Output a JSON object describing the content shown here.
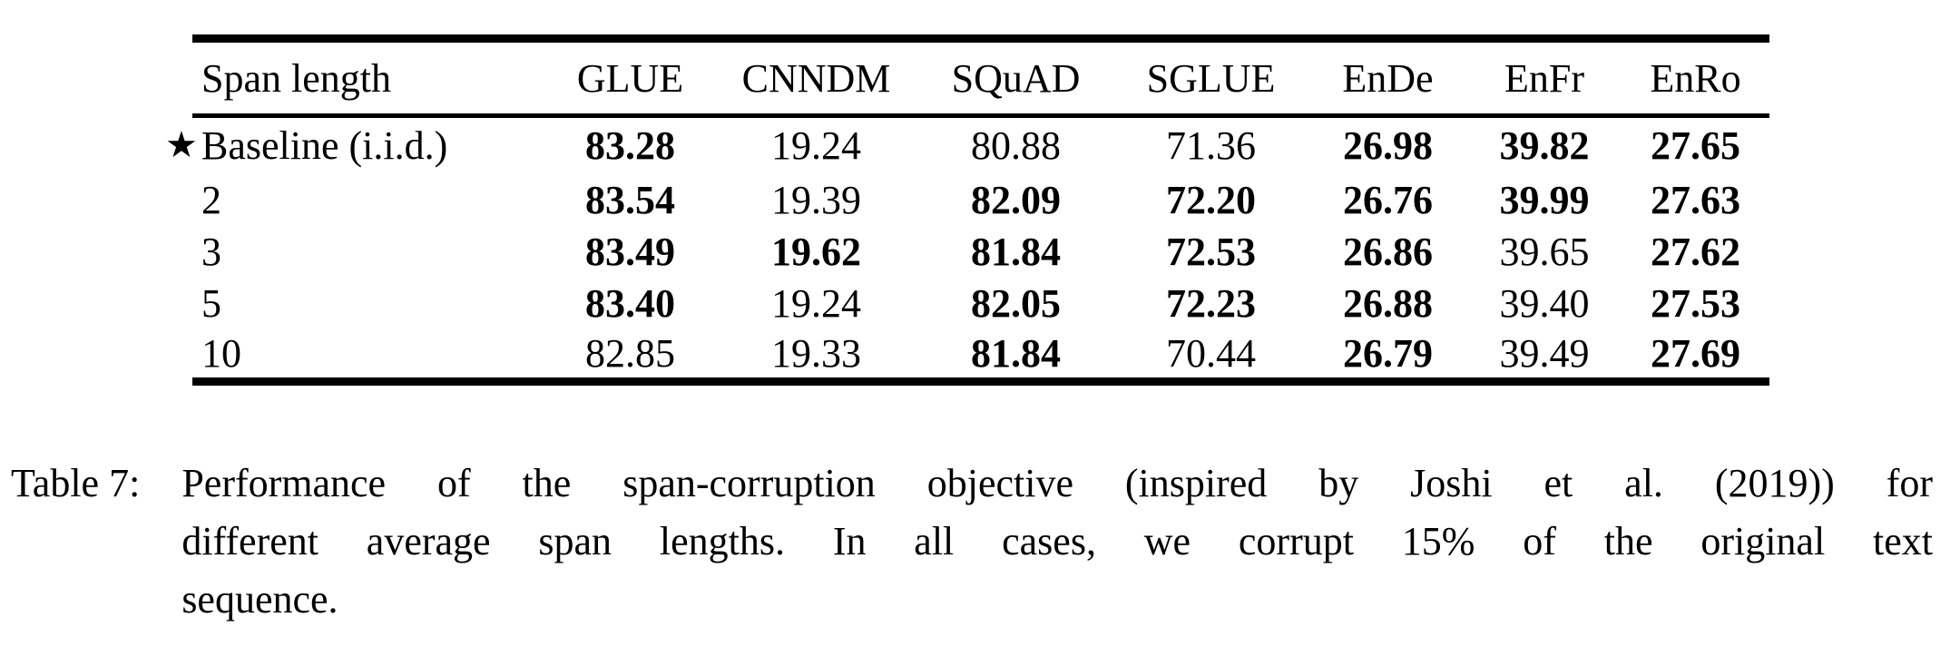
{
  "table": {
    "columns": [
      "Span length",
      "GLUE",
      "CNNDM",
      "SQuAD",
      "SGLUE",
      "EnDe",
      "EnFr",
      "EnRo"
    ],
    "rows": [
      {
        "star": "★",
        "label": "Baseline (i.i.d.)",
        "cells": [
          "83.28",
          "19.24",
          "80.88",
          "71.36",
          "26.98",
          "39.82",
          "27.65"
        ],
        "bold": [
          true,
          false,
          false,
          false,
          true,
          true,
          true
        ]
      },
      {
        "label": "2",
        "cells": [
          "83.54",
          "19.39",
          "82.09",
          "72.20",
          "26.76",
          "39.99",
          "27.63"
        ],
        "bold": [
          true,
          false,
          true,
          true,
          true,
          true,
          true
        ]
      },
      {
        "label": "3",
        "cells": [
          "83.49",
          "19.62",
          "81.84",
          "72.53",
          "26.86",
          "39.65",
          "27.62"
        ],
        "bold": [
          true,
          true,
          true,
          true,
          true,
          false,
          true
        ]
      },
      {
        "label": "5",
        "cells": [
          "83.40",
          "19.24",
          "82.05",
          "72.23",
          "26.88",
          "39.40",
          "27.53"
        ],
        "bold": [
          true,
          false,
          true,
          true,
          true,
          false,
          true
        ]
      },
      {
        "label": "10",
        "cells": [
          "82.85",
          "19.33",
          "81.84",
          "70.44",
          "26.79",
          "39.49",
          "27.69"
        ],
        "bold": [
          false,
          false,
          true,
          false,
          true,
          false,
          true
        ]
      }
    ]
  },
  "caption": {
    "label": "Table 7:",
    "lines": [
      "Performance of the span-corruption objective (inspired by Joshi et al. (2019)) for",
      "different average span lengths. In all cases, we corrupt 15% of the original text",
      "sequence."
    ]
  }
}
